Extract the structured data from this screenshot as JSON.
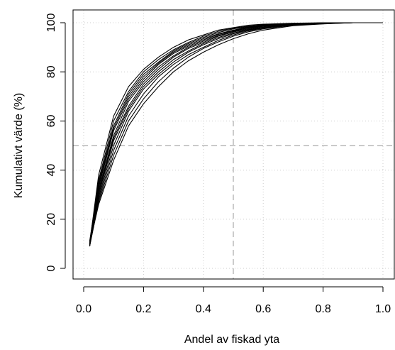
{
  "chart_data": {
    "type": "line",
    "title": "",
    "xlabel": "Andel av fiskad yta",
    "ylabel": "Kumulativt värde (%)",
    "xlim": [
      0.0,
      1.0
    ],
    "ylim": [
      0,
      100
    ],
    "x_ticks": [
      "0.0",
      "0.2",
      "0.4",
      "0.6",
      "0.8",
      "1.0"
    ],
    "y_ticks": [
      "0",
      "20",
      "40",
      "60",
      "80",
      "100"
    ],
    "grid": true,
    "reference_lines": {
      "x": 0.5,
      "y": 50
    },
    "line_color": "#000000",
    "grid_color": "#cccccc",
    "ref_color": "#aaaaaa",
    "x": [
      0.02,
      0.05,
      0.1,
      0.15,
      0.2,
      0.25,
      0.3,
      0.35,
      0.4,
      0.45,
      0.5,
      0.55,
      0.6,
      0.7,
      0.8,
      0.9,
      1.0
    ],
    "series": [
      {
        "values": [
          10,
          38,
          62,
          74,
          81,
          86,
          90,
          93,
          95,
          97,
          98,
          99,
          99.4,
          99.8,
          100,
          100,
          100
        ]
      },
      {
        "values": [
          10,
          36,
          60,
          72,
          80,
          85,
          89,
          92,
          94.5,
          96.5,
          97.8,
          98.6,
          99.2,
          99.7,
          99.9,
          100,
          100
        ]
      },
      {
        "values": [
          11,
          35,
          58,
          71,
          79,
          84,
          88.5,
          91.5,
          94,
          96,
          97.5,
          98.4,
          99,
          99.6,
          99.9,
          100,
          100
        ]
      },
      {
        "values": [
          10,
          34,
          57,
          70,
          78,
          83.5,
          88,
          91,
          93.5,
          95.5,
          97,
          98.2,
          98.9,
          99.6,
          99.9,
          100,
          100
        ]
      },
      {
        "values": [
          9.5,
          33,
          56,
          69,
          77,
          83,
          87.5,
          90.5,
          93,
          95.2,
          96.8,
          98,
          98.8,
          99.5,
          99.8,
          100,
          100
        ]
      },
      {
        "values": [
          10,
          32,
          54,
          68,
          76,
          82,
          86.5,
          90,
          92.5,
          94.8,
          96.5,
          97.8,
          98.6,
          99.5,
          99.8,
          100,
          100
        ]
      },
      {
        "values": [
          9,
          31,
          53,
          66,
          75,
          81,
          86,
          89.5,
          92,
          94.5,
          96.2,
          97.5,
          98.5,
          99.4,
          99.8,
          100,
          100
        ]
      },
      {
        "values": [
          9,
          30,
          52,
          65,
          74,
          80,
          85,
          88.5,
          91.5,
          94,
          95.8,
          97.2,
          98.2,
          99.3,
          99.8,
          100,
          100
        ]
      },
      {
        "values": [
          9.5,
          29,
          50,
          64,
          73,
          79,
          84,
          88,
          91,
          93.5,
          95.5,
          97,
          98,
          99.2,
          99.7,
          100,
          100
        ]
      },
      {
        "values": [
          9,
          28,
          48,
          62,
          71,
          78,
          83,
          87,
          90,
          92.8,
          95,
          96.7,
          97.8,
          99.1,
          99.7,
          100,
          100
        ]
      },
      {
        "values": [
          9,
          27,
          46,
          60,
          69,
          76,
          81.5,
          86,
          89.5,
          92.2,
          94.5,
          96.3,
          97.5,
          99,
          99.6,
          100,
          100
        ]
      },
      {
        "values": [
          10,
          26,
          44,
          58,
          67,
          74,
          80,
          84.5,
          88,
          91,
          93.5,
          95.5,
          97,
          98.8,
          99.5,
          100,
          100
        ]
      }
    ]
  }
}
